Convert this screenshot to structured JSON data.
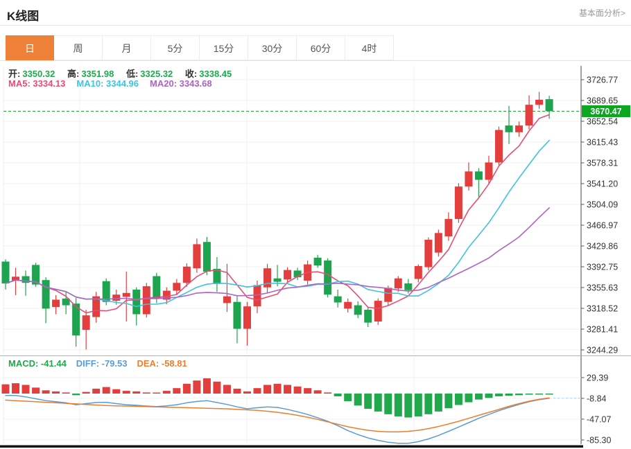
{
  "header": {
    "title": "K线图",
    "link": "基本面分析>"
  },
  "tabs": {
    "items": [
      "日",
      "周",
      "月",
      "5分",
      "15分",
      "30分",
      "60分",
      "4时"
    ],
    "active_index": 0
  },
  "ohlc": {
    "open_label": "开:",
    "open": "3350.32",
    "high_label": "高:",
    "high": "3351.98",
    "low_label": "低:",
    "low": "3325.32",
    "close_label": "收:",
    "close": "3338.45"
  },
  "ma": {
    "ma5": "MA5: 3334.13",
    "ma10": "MA10: 3344.96",
    "ma20": "MA20: 3343.68"
  },
  "macd_header": {
    "macd": "MACD: -41.44",
    "diff": "DIFF: -79.53",
    "dea": "DEA: -58.81"
  },
  "price_axis": {
    "ticks": [
      "3726.77",
      "3689.65",
      "3652.54",
      "3615.43",
      "3578.31",
      "3541.20",
      "3504.09",
      "3466.97",
      "3429.86",
      "3392.75",
      "3355.63",
      "3318.52",
      "3281.41",
      "3244.29"
    ],
    "current": "3670.47"
  },
  "macd_axis": {
    "ticks": [
      "29.39",
      "-8.84",
      "-47.07",
      "-85.30"
    ]
  },
  "colors": {
    "up": "#e33e3e",
    "down": "#1ea34f",
    "ma5": "#e54d76",
    "ma10": "#3ec3e0",
    "ma20": "#ad63c4",
    "diff": "#5b9bd5",
    "dea": "#ec7d2d",
    "hist_up": "#e33e3e",
    "hist_down": "#21a84c",
    "current_tag": "#0da620",
    "current_line": "#1ba82a",
    "grid": "#f0f0f0",
    "axis": "#444444",
    "tick_text": "#333333",
    "separator": "#b0b0b0",
    "bottom_bar": "#151515",
    "dashed_ext": "#b5d4f0"
  },
  "chart_data": {
    "type": "candlestick",
    "title": "K线图 日K (daily K-line with MA5/MA10/MA20 overlays and MACD sub-chart)",
    "legend": [
      "MA5",
      "MA10",
      "MA20"
    ],
    "y_ticks": [
      3726.77,
      3689.65,
      3652.54,
      3615.43,
      3578.31,
      3541.2,
      3504.09,
      3466.97,
      3429.86,
      3392.75,
      3355.63,
      3318.52,
      3281.41,
      3244.29
    ],
    "current_price": 3670.47,
    "price_top_tick": 3726.77,
    "price_tick_step": 37.115,
    "candles": [
      [
        3402,
        3406,
        3352,
        3363
      ],
      [
        3368,
        3391,
        3342,
        3375
      ],
      [
        3376,
        3386,
        3341,
        3364
      ],
      [
        3396,
        3400,
        3357,
        3361
      ],
      [
        3369,
        3374,
        3292,
        3318
      ],
      [
        3321,
        3342,
        3308,
        3334
      ],
      [
        3336,
        3348,
        3308,
        3324
      ],
      [
        3327,
        3337,
        3250,
        3270
      ],
      [
        3280,
        3316,
        3245,
        3306
      ],
      [
        3303,
        3348,
        3293,
        3340
      ],
      [
        3367,
        3372,
        3324,
        3330
      ],
      [
        3332,
        3352,
        3325,
        3343
      ],
      [
        3339,
        3384,
        3295,
        3346
      ],
      [
        3352,
        3356,
        3288,
        3308
      ],
      [
        3308,
        3364,
        3302,
        3358
      ],
      [
        3376,
        3382,
        3328,
        3336
      ],
      [
        3334,
        3356,
        3326,
        3350
      ],
      [
        3350,
        3371,
        3342,
        3364
      ],
      [
        3364,
        3399,
        3357,
        3393
      ],
      [
        3390,
        3443,
        3382,
        3433
      ],
      [
        3437,
        3446,
        3378,
        3384
      ],
      [
        3389,
        3410,
        3348,
        3362
      ],
      [
        3328,
        3398,
        3312,
        3340
      ],
      [
        3330,
        3340,
        3256,
        3282
      ],
      [
        3282,
        3330,
        3252,
        3322
      ],
      [
        3322,
        3368,
        3310,
        3360
      ],
      [
        3356,
        3398,
        3346,
        3390
      ],
      [
        3372,
        3396,
        3358,
        3366
      ],
      [
        3370,
        3392,
        3363,
        3387
      ],
      [
        3386,
        3391,
        3369,
        3374
      ],
      [
        3368,
        3404,
        3361,
        3397
      ],
      [
        3409,
        3414,
        3391,
        3395
      ],
      [
        3404,
        3408,
        3338,
        3343
      ],
      [
        3340,
        3352,
        3320,
        3329
      ],
      [
        3318,
        3336,
        3311,
        3330
      ],
      [
        3324,
        3331,
        3301,
        3307
      ],
      [
        3316,
        3321,
        3285,
        3293
      ],
      [
        3295,
        3336,
        3289,
        3332
      ],
      [
        3330,
        3359,
        3323,
        3355
      ],
      [
        3354,
        3376,
        3348,
        3372
      ],
      [
        3363,
        3371,
        3345,
        3351
      ],
      [
        3371,
        3397,
        3365,
        3394
      ],
      [
        3392,
        3445,
        3386,
        3441
      ],
      [
        3418,
        3459,
        3411,
        3453
      ],
      [
        3447,
        3490,
        3439,
        3478
      ],
      [
        3478,
        3542,
        3471,
        3536
      ],
      [
        3536,
        3579,
        3529,
        3563
      ],
      [
        3563,
        3569,
        3517,
        3548
      ],
      [
        3548,
        3591,
        3541,
        3579
      ],
      [
        3579,
        3643,
        3573,
        3637
      ],
      [
        3645,
        3680,
        3612,
        3633
      ],
      [
        3633,
        3652,
        3625,
        3645
      ],
      [
        3645,
        3699,
        3638,
        3682
      ],
      [
        3682,
        3705,
        3675,
        3691
      ],
      [
        3692,
        3698,
        3657,
        3670.47
      ]
    ],
    "indicator": {
      "type": "macd",
      "y_ticks": [
        29.39,
        -8.84,
        -47.07,
        -85.3
      ],
      "diff": [
        -3.5,
        -3.5,
        -6,
        -9.5,
        -13,
        -15,
        -17,
        -20.5,
        -18.5,
        -16.5,
        -16,
        -18.5,
        -20.5,
        -21.5,
        -23,
        -24,
        -22.5,
        -20.5,
        -17,
        -14.5,
        -13,
        -16.5,
        -20,
        -24.5,
        -28,
        -26,
        -24.5,
        -25.5,
        -29,
        -33.5,
        -38.5,
        -44.5,
        -51,
        -59,
        -68,
        -75.5,
        -81.5,
        -86,
        -89.5,
        -91.5,
        -91.5,
        -88.5,
        -83.5,
        -77,
        -69.5,
        -61.5,
        -53.5,
        -45.5,
        -38.5,
        -31.5,
        -25.5,
        -20,
        -15,
        -11.25,
        -8.5
      ],
      "dea": [
        -12,
        -13,
        -14,
        -15,
        -16,
        -17,
        -18,
        -19,
        -20,
        -21,
        -22,
        -22.5,
        -23,
        -23.5,
        -24,
        -24.5,
        -25,
        -25.5,
        -26,
        -26.5,
        -27,
        -27.5,
        -28,
        -29,
        -30,
        -31,
        -32.5,
        -34.5,
        -37,
        -40,
        -43.5,
        -47.5,
        -52,
        -56.5,
        -61,
        -64.5,
        -67.5,
        -69.5,
        -70.5,
        -70.5,
        -69.5,
        -67.5,
        -64.5,
        -60.5,
        -56,
        -51,
        -45.5,
        -40,
        -34.5,
        -29,
        -23.5,
        -18.5,
        -14,
        -10.5,
        -8
      ]
    }
  }
}
